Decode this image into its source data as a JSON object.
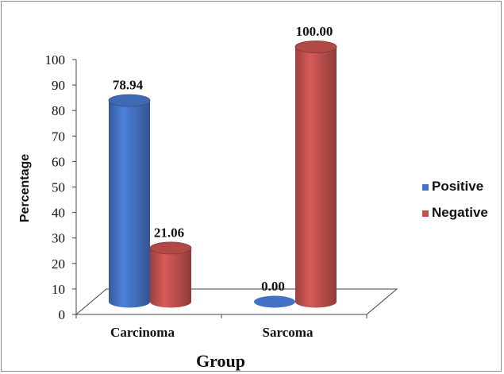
{
  "chart_data": {
    "type": "bar",
    "style": "3d-cylinder",
    "categories": [
      "Carcinoma",
      "Sarcoma"
    ],
    "series": [
      {
        "name": "Positive",
        "color": "#4472c4",
        "values": [
          78.94,
          0.0
        ],
        "labels": [
          "78.94",
          "0.00"
        ]
      },
      {
        "name": "Negative",
        "color": "#c0504d",
        "values": [
          21.06,
          100.0
        ],
        "labels": [
          "21.06",
          "100.00"
        ]
      }
    ],
    "title": "",
    "xlabel": "Group",
    "ylabel": "Percentage",
    "ylim": [
      0,
      100
    ],
    "yticks": [
      "0",
      "10",
      "20",
      "30",
      "40",
      "50",
      "60",
      "70",
      "80",
      "90",
      "100"
    ],
    "grid": false,
    "legend_position": "right"
  }
}
